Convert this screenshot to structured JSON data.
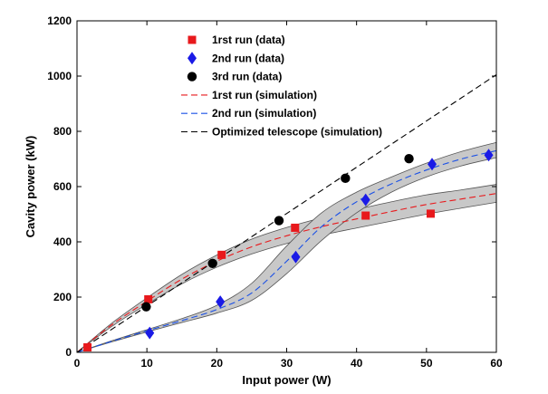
{
  "chart_data": {
    "type": "scatter",
    "xlabel": "Input power (W)",
    "ylabel": "Cavity power (kW)",
    "xlim": [
      0,
      60
    ],
    "ylim": [
      0,
      1200
    ],
    "xticks": [
      0,
      10,
      20,
      30,
      40,
      50,
      60
    ],
    "yticks": [
      0,
      200,
      400,
      600,
      800,
      1000,
      1200
    ],
    "grid": false,
    "legend_position": "top-left",
    "series": [
      {
        "name": "1rst run (data)",
        "kind": "points",
        "marker": "square",
        "color": "#e8191c",
        "x": [
          1.5,
          10.2,
          20.7,
          31.2,
          41.3,
          50.6
        ],
        "y": [
          18,
          192,
          353,
          451,
          495,
          502
        ]
      },
      {
        "name": "2nd run (data)",
        "kind": "points",
        "marker": "diamond",
        "color": "#1a1ae6",
        "x": [
          10.4,
          20.5,
          31.3,
          41.3,
          50.8,
          58.9
        ],
        "y": [
          70,
          183,
          345,
          552,
          681,
          714
        ]
      },
      {
        "name": "3rd run (data)",
        "kind": "points",
        "marker": "circle",
        "color": "#000000",
        "x": [
          9.9,
          19.4,
          28.9,
          38.4,
          47.5
        ],
        "y": [
          165,
          322,
          477,
          630,
          701
        ]
      },
      {
        "name": "1rst run (simulation)",
        "kind": "line",
        "dash": "dashed",
        "color": "#e8191c",
        "x": [
          0,
          5,
          10,
          15,
          20,
          25,
          30,
          35,
          40,
          45,
          50,
          55,
          60
        ],
        "y": [
          0,
          100,
          185,
          265,
          330,
          382,
          422,
          455,
          483,
          510,
          535,
          555,
          575
        ],
        "band_upper": [
          0,
          106,
          197,
          282,
          352,
          410,
          452,
          487,
          517,
          545,
          570,
          588,
          608
        ],
        "band_lower": [
          0,
          94,
          174,
          248,
          308,
          356,
          394,
          424,
          450,
          475,
          500,
          522,
          543
        ]
      },
      {
        "name": "2nd run (simulation)",
        "kind": "line",
        "dash": "dashed",
        "color": "#1a50e6",
        "x": [
          0,
          5,
          10,
          15,
          20,
          25,
          30,
          35,
          40,
          45,
          50,
          55,
          60
        ],
        "y": [
          0,
          40,
          78,
          115,
          155,
          215,
          330,
          455,
          545,
          610,
          660,
          700,
          730
        ],
        "band_upper": [
          0,
          42,
          82,
          122,
          170,
          250,
          385,
          505,
          580,
          635,
          685,
          727,
          760
        ],
        "band_lower": [
          0,
          38,
          74,
          108,
          142,
          188,
          285,
          405,
          505,
          580,
          635,
          675,
          705
        ]
      },
      {
        "name": "Optimized telescope (simulation)",
        "kind": "line",
        "dash": "dashed",
        "color": "#000000",
        "x": [
          0,
          60
        ],
        "y": [
          0,
          1005
        ]
      }
    ]
  },
  "colors": {
    "band_fill": "#c8c8c8",
    "band_stroke": "#555555",
    "axis": "#000000"
  }
}
